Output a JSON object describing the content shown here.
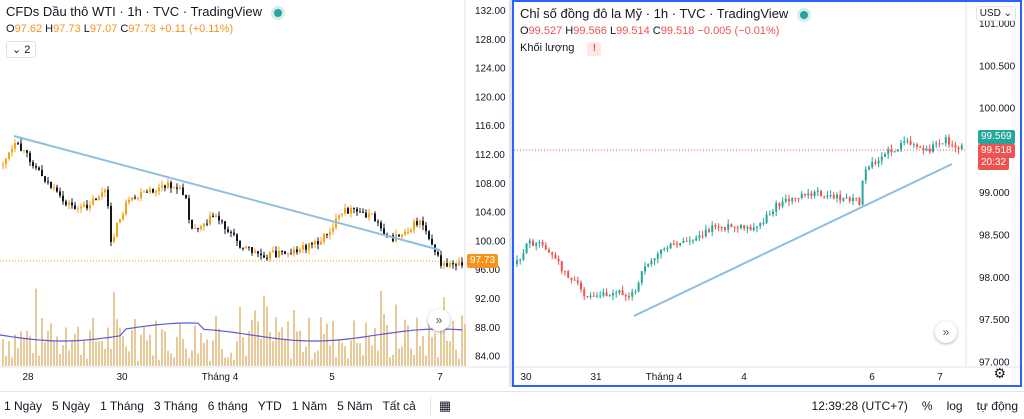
{
  "left_chart": {
    "title": "CFDs Dầu thô WTI · 1h · TVC · TradingView",
    "ohlc": {
      "o_key": "O",
      "o": "97.62",
      "h_key": "H",
      "h": "97.73",
      "l_key": "L",
      "l": "97.07",
      "c_key": "C",
      "c": "97.73",
      "change": "+0.11 (+0.11%)"
    },
    "collapse_label": "2",
    "last_price": "97.73",
    "price_axis": [
      "132.00",
      "128.00",
      "124.00",
      "120.00",
      "116.00",
      "112.00",
      "108.00",
      "104.00",
      "100.00",
      "96.00",
      "92.00",
      "88.00",
      "84.00"
    ],
    "time_axis": [
      "28",
      "30",
      "Tháng 4",
      "5",
      "7"
    ],
    "colors": {
      "up": "#f7a21b",
      "down": "#131722",
      "trendline": "#8fbfe0",
      "volume": "#e8c99a",
      "ma": "#5b5bd6"
    }
  },
  "right_chart": {
    "title": "Chỉ số đồng đô la Mỹ · 1h · TVC · TradingView",
    "ohlc": {
      "o_key": "O",
      "o": "99.527",
      "h_key": "H",
      "h": "99.566",
      "l_key": "L",
      "l": "99.514",
      "c_key": "C",
      "c": "99.518",
      "change": "−0.005 (−0.01%)"
    },
    "volume_label": "Khối lượng",
    "warn_icon": "!",
    "currency": "USD",
    "price_tag_green": "99.569",
    "price_tag_red": "99.518",
    "countdown": "20:32",
    "price_axis": [
      "101.000",
      "100.500",
      "100.000",
      "99.500",
      "99.000",
      "98.500",
      "98.000",
      "97.500",
      "97.000"
    ],
    "time_axis": [
      "30",
      "31",
      "Tháng 4",
      "4",
      "6",
      "7"
    ],
    "colors": {
      "up": "#26a69a",
      "down": "#ef5350",
      "trendline": "#8fbfe0"
    }
  },
  "bottombar": {
    "ranges": [
      "1 Ngày",
      "5 Ngày",
      "1 Tháng",
      "3 Tháng",
      "6 tháng",
      "YTD",
      "1 Năm",
      "5 Năm",
      "Tất cả"
    ],
    "time": "12:39:28 (UTC+7)",
    "percent": "%",
    "log": "log",
    "auto": "tự động"
  }
}
